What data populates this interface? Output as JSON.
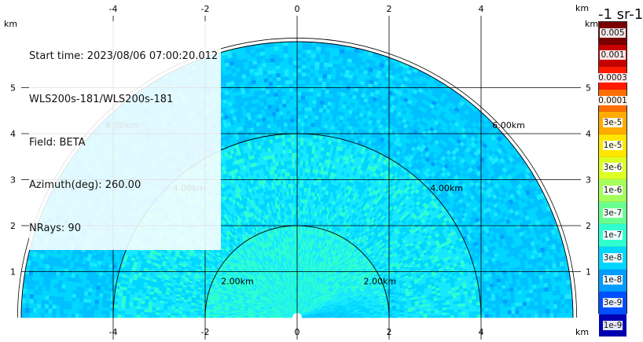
{
  "info": {
    "start_time": "Start time: 2023/08/06 07:00:20.012",
    "instrument": "WLS200s-181/WLS200s-181",
    "field": "Field: BETA",
    "azimuth": "Azimuth(deg): 260.00",
    "nrays": "NRays: 90"
  },
  "colorbar": {
    "unit_label": "-1 sr-1",
    "levels": [
      {
        "label": "0.005",
        "color": "#7a0000"
      },
      {
        "label": "0.001",
        "color": "#c70000"
      },
      {
        "label": "0.0003",
        "color": "#ff1a00"
      },
      {
        "label": "0.0001",
        "color": "#ff6e00"
      },
      {
        "label": "3e-5",
        "color": "#ffab00"
      },
      {
        "label": "1e-5",
        "color": "#ffe600"
      },
      {
        "label": "3e-6",
        "color": "#ddff22"
      },
      {
        "label": "1e-6",
        "color": "#a4ff5a"
      },
      {
        "label": "3e-7",
        "color": "#69ff90"
      },
      {
        "label": "1e-7",
        "color": "#2fffd0"
      },
      {
        "label": "3e-8",
        "color": "#00d6ff"
      },
      {
        "label": "1e-8",
        "color": "#009cff"
      },
      {
        "label": "3e-9",
        "color": "#0050ff"
      },
      {
        "label": "1e-9",
        "color": "#0000b0"
      }
    ]
  },
  "chart_data": {
    "type": "heatmap",
    "title": "",
    "xlabel": "km",
    "ylabel": "km",
    "x_ticks": [
      -4,
      -2,
      0,
      2,
      4
    ],
    "y_ticks": [
      1,
      2,
      3,
      4,
      5
    ],
    "range_rings": [
      {
        "radius_km": 2,
        "label": "2.00km"
      },
      {
        "radius_km": 4,
        "label": "4.00km"
      },
      {
        "radius_km": 6,
        "label": "6.00km"
      }
    ],
    "max_range_km": 6,
    "nrays": 90,
    "scan": "RHI",
    "grid": true,
    "colorscale": "jet"
  }
}
